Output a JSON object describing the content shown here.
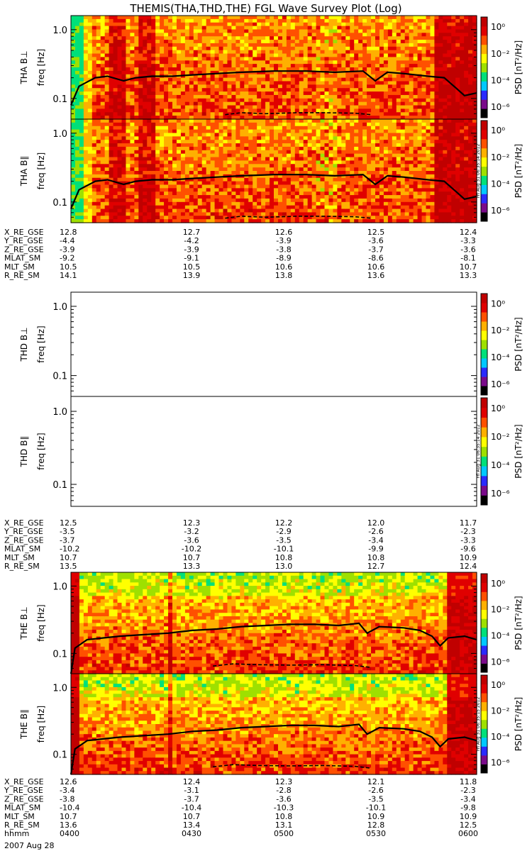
{
  "title": "THEMIS(THA,THD,THE) FGL Wave Survey Plot (Log)",
  "colorbar": {
    "label": "PSD [nT²/Hz]",
    "ticks": [
      "10⁰",
      "10⁻²",
      "10⁻⁴",
      "10⁻⁶"
    ],
    "colors": [
      "#000000",
      "#7a0a8a",
      "#2a2aff",
      "#00c8ff",
      "#00e07a",
      "#9ee000",
      "#ffff00",
      "#ffb000",
      "#ff5000",
      "#e00000",
      "#c00000"
    ]
  },
  "freq_ticks": [
    "1.0",
    "0.1"
  ],
  "freq_axis_label": "freq [Hz]",
  "timestamp": "Fri Aug 31 06:35:14 2012",
  "timestamp_2": "Fri Aug 31 06:35:15 2012",
  "chart_data": {
    "type": "heatmap",
    "x_label": "hhmm",
    "date": "2007 Aug 28",
    "x_ticks": [
      "0400",
      "0430",
      "0500",
      "0530",
      "0600"
    ],
    "ylim": [
      0.05,
      1.6
    ],
    "y_scale": "log",
    "panels": [
      {
        "name": "THA B⊥",
        "empty": false,
        "solid": [
          [
            0.0,
            0.08
          ],
          [
            0.02,
            0.15
          ],
          [
            0.06,
            0.2
          ],
          [
            0.09,
            0.21
          ],
          [
            0.13,
            0.18
          ],
          [
            0.16,
            0.2
          ],
          [
            0.2,
            0.21
          ],
          [
            0.25,
            0.21
          ],
          [
            0.3,
            0.22
          ],
          [
            0.36,
            0.23
          ],
          [
            0.42,
            0.24
          ],
          [
            0.5,
            0.25
          ],
          [
            0.58,
            0.25
          ],
          [
            0.65,
            0.24
          ],
          [
            0.72,
            0.25
          ],
          [
            0.75,
            0.18
          ],
          [
            0.78,
            0.24
          ],
          [
            0.82,
            0.23
          ],
          [
            0.88,
            0.21
          ],
          [
            0.92,
            0.2
          ],
          [
            0.95,
            0.14
          ],
          [
            0.97,
            0.11
          ],
          [
            1.0,
            0.12
          ]
        ],
        "dashed": [
          [
            0.38,
            0.058
          ],
          [
            0.42,
            0.062
          ],
          [
            0.48,
            0.06
          ],
          [
            0.56,
            0.062
          ],
          [
            0.62,
            0.062
          ],
          [
            0.7,
            0.061
          ],
          [
            0.74,
            0.058
          ]
        ]
      },
      {
        "name": "THA B∥",
        "empty": false,
        "solid": [
          [
            0.0,
            0.08
          ],
          [
            0.02,
            0.15
          ],
          [
            0.06,
            0.2
          ],
          [
            0.09,
            0.21
          ],
          [
            0.13,
            0.18
          ],
          [
            0.16,
            0.2
          ],
          [
            0.2,
            0.21
          ],
          [
            0.25,
            0.21
          ],
          [
            0.3,
            0.22
          ],
          [
            0.36,
            0.23
          ],
          [
            0.42,
            0.24
          ],
          [
            0.5,
            0.25
          ],
          [
            0.58,
            0.25
          ],
          [
            0.65,
            0.24
          ],
          [
            0.72,
            0.25
          ],
          [
            0.75,
            0.18
          ],
          [
            0.78,
            0.24
          ],
          [
            0.82,
            0.23
          ],
          [
            0.88,
            0.21
          ],
          [
            0.92,
            0.2
          ],
          [
            0.95,
            0.14
          ],
          [
            0.97,
            0.11
          ],
          [
            1.0,
            0.12
          ]
        ],
        "dashed": [
          [
            0.38,
            0.058
          ],
          [
            0.42,
            0.062
          ],
          [
            0.48,
            0.06
          ],
          [
            0.56,
            0.062
          ],
          [
            0.62,
            0.062
          ],
          [
            0.7,
            0.061
          ],
          [
            0.74,
            0.058
          ]
        ]
      },
      {
        "name": "THD B⊥",
        "empty": true,
        "solid": [],
        "dashed": []
      },
      {
        "name": "THD B∥",
        "empty": true,
        "solid": [],
        "dashed": []
      },
      {
        "name": "THE B⊥",
        "empty": false,
        "solid": [
          [
            0.0,
            0.05
          ],
          [
            0.01,
            0.12
          ],
          [
            0.04,
            0.16
          ],
          [
            0.08,
            0.17
          ],
          [
            0.12,
            0.18
          ],
          [
            0.18,
            0.19
          ],
          [
            0.24,
            0.2
          ],
          [
            0.3,
            0.22
          ],
          [
            0.36,
            0.23
          ],
          [
            0.42,
            0.25
          ],
          [
            0.48,
            0.26
          ],
          [
            0.54,
            0.27
          ],
          [
            0.6,
            0.27
          ],
          [
            0.66,
            0.26
          ],
          [
            0.71,
            0.28
          ],
          [
            0.73,
            0.2
          ],
          [
            0.76,
            0.25
          ],
          [
            0.82,
            0.24
          ],
          [
            0.86,
            0.22
          ],
          [
            0.89,
            0.18
          ],
          [
            0.91,
            0.13
          ],
          [
            0.93,
            0.17
          ],
          [
            0.97,
            0.18
          ],
          [
            1.0,
            0.16
          ]
        ],
        "dashed": [
          [
            0.35,
            0.065
          ],
          [
            0.4,
            0.07
          ],
          [
            0.46,
            0.068
          ],
          [
            0.54,
            0.067
          ],
          [
            0.62,
            0.068
          ],
          [
            0.7,
            0.066
          ],
          [
            0.74,
            0.062
          ]
        ]
      },
      {
        "name": "THE B∥",
        "empty": false,
        "solid": [
          [
            0.0,
            0.05
          ],
          [
            0.01,
            0.12
          ],
          [
            0.04,
            0.16
          ],
          [
            0.08,
            0.17
          ],
          [
            0.12,
            0.18
          ],
          [
            0.18,
            0.19
          ],
          [
            0.24,
            0.2
          ],
          [
            0.3,
            0.22
          ],
          [
            0.36,
            0.23
          ],
          [
            0.42,
            0.25
          ],
          [
            0.48,
            0.26
          ],
          [
            0.54,
            0.27
          ],
          [
            0.6,
            0.27
          ],
          [
            0.66,
            0.26
          ],
          [
            0.71,
            0.28
          ],
          [
            0.73,
            0.2
          ],
          [
            0.76,
            0.25
          ],
          [
            0.82,
            0.24
          ],
          [
            0.86,
            0.22
          ],
          [
            0.89,
            0.18
          ],
          [
            0.91,
            0.13
          ],
          [
            0.93,
            0.17
          ],
          [
            0.97,
            0.18
          ],
          [
            1.0,
            0.16
          ]
        ],
        "dashed": [
          [
            0.35,
            0.065
          ],
          [
            0.4,
            0.07
          ],
          [
            0.46,
            0.068
          ],
          [
            0.54,
            0.067
          ],
          [
            0.62,
            0.068
          ],
          [
            0.7,
            0.066
          ],
          [
            0.74,
            0.062
          ]
        ]
      }
    ]
  },
  "ephemeris": [
    {
      "rows": [
        {
          "label": "X_RE_GSE",
          "values": [
            "12.8",
            "12.7",
            "12.6",
            "12.5",
            "12.4"
          ]
        },
        {
          "label": "Y_RE_GSE",
          "values": [
            "-4.4",
            "-4.2",
            "-3.9",
            "-3.6",
            "-3.3"
          ]
        },
        {
          "label": "Z_RE_GSE",
          "values": [
            "-3.9",
            "-3.9",
            "-3.8",
            "-3.7",
            "-3.6"
          ]
        },
        {
          "label": "MLAT_SM",
          "values": [
            "-9.2",
            "-9.1",
            "-8.9",
            "-8.6",
            "-8.1"
          ]
        },
        {
          "label": "MLT_SM",
          "values": [
            "10.5",
            "10.5",
            "10.6",
            "10.6",
            "10.7"
          ]
        },
        {
          "label": "R_RE_SM",
          "values": [
            "14.1",
            "13.9",
            "13.8",
            "13.6",
            "13.3"
          ]
        }
      ]
    },
    {
      "rows": [
        {
          "label": "X_RE_GSE",
          "values": [
            "12.5",
            "12.3",
            "12.2",
            "12.0",
            "11.7"
          ]
        },
        {
          "label": "Y_RE_GSE",
          "values": [
            "-3.5",
            "-3.2",
            "-2.9",
            "-2.6",
            "-2.3"
          ]
        },
        {
          "label": "Z_RE_GSE",
          "values": [
            "-3.7",
            "-3.6",
            "-3.5",
            "-3.4",
            "-3.3"
          ]
        },
        {
          "label": "MLAT_SM",
          "values": [
            "-10.2",
            "-10.2",
            "-10.1",
            "-9.9",
            "-9.6"
          ]
        },
        {
          "label": "MLT_SM",
          "values": [
            "10.7",
            "10.7",
            "10.8",
            "10.8",
            "10.9"
          ]
        },
        {
          "label": "R_RE_SM",
          "values": [
            "13.5",
            "13.3",
            "13.0",
            "12.7",
            "12.4"
          ]
        }
      ]
    },
    {
      "rows": [
        {
          "label": "X_RE_GSE",
          "values": [
            "12.6",
            "12.4",
            "12.3",
            "12.1",
            "11.8"
          ]
        },
        {
          "label": "Y_RE_GSE",
          "values": [
            "-3.4",
            "-3.1",
            "-2.8",
            "-2.6",
            "-2.3"
          ]
        },
        {
          "label": "Z_RE_GSE",
          "values": [
            "-3.8",
            "-3.7",
            "-3.6",
            "-3.5",
            "-3.4"
          ]
        },
        {
          "label": "MLAT_SM",
          "values": [
            "-10.4",
            "-10.4",
            "-10.3",
            "-10.1",
            "-9.8"
          ]
        },
        {
          "label": "MLT_SM",
          "values": [
            "10.7",
            "10.7",
            "10.8",
            "10.9",
            "10.9"
          ]
        },
        {
          "label": "R_RE_SM",
          "values": [
            "13.6",
            "13.4",
            "13.1",
            "12.8",
            "12.5"
          ]
        },
        {
          "label": "hhmm",
          "values": [
            "0400",
            "0430",
            "0500",
            "0530",
            "0600"
          ]
        }
      ]
    }
  ]
}
